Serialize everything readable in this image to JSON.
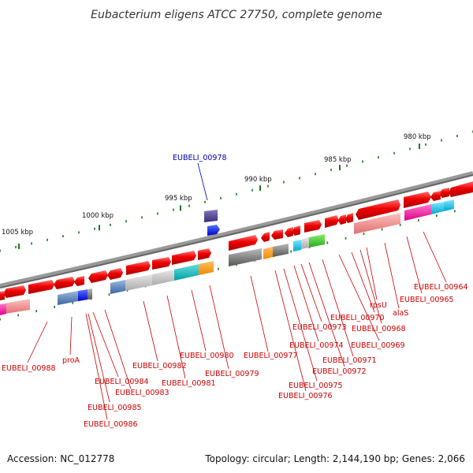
{
  "title": "Eubacterium eligens ATCC 27750, complete genome",
  "footer": {
    "accession": "Accession: NC_012778",
    "summary": "Topology: circular; Length: 2,144,190 bp; Genes: 2,066"
  },
  "scale": {
    "ticks": [
      {
        "label": "980 kbp"
      },
      {
        "label": "985 kbp"
      },
      {
        "label": "990 kbp"
      },
      {
        "label": "995 kbp"
      },
      {
        "label": "1000 kbp"
      },
      {
        "label": "1005 kbp"
      }
    ]
  },
  "highlighted_gene": "EUBELI_00978",
  "gene_labels": [
    "EUBELI_00964",
    "EUBELI_00965",
    "alaS",
    "rpsU",
    "EUBELI_00968",
    "EUBELI_00969",
    "EUBELI_00970",
    "EUBELI_00971",
    "EUBELI_00972",
    "EUBELI_00973",
    "EUBELI_00974",
    "EUBELI_00975",
    "EUBELI_00976",
    "EUBELI_00977",
    "EUBELI_00978",
    "EUBELI_00979",
    "EUBELI_00980",
    "EUBELI_00981",
    "EUBELI_00982",
    "EUBELI_00983",
    "EUBELI_00984",
    "EUBELI_00985",
    "EUBELI_00986",
    "proA",
    "EUBELI_00988"
  ],
  "colors": {
    "gene_forward": "#ee0000",
    "backbone": "#888888",
    "highlight": "#0000aa",
    "tick_minor": "#1a7a1a"
  }
}
